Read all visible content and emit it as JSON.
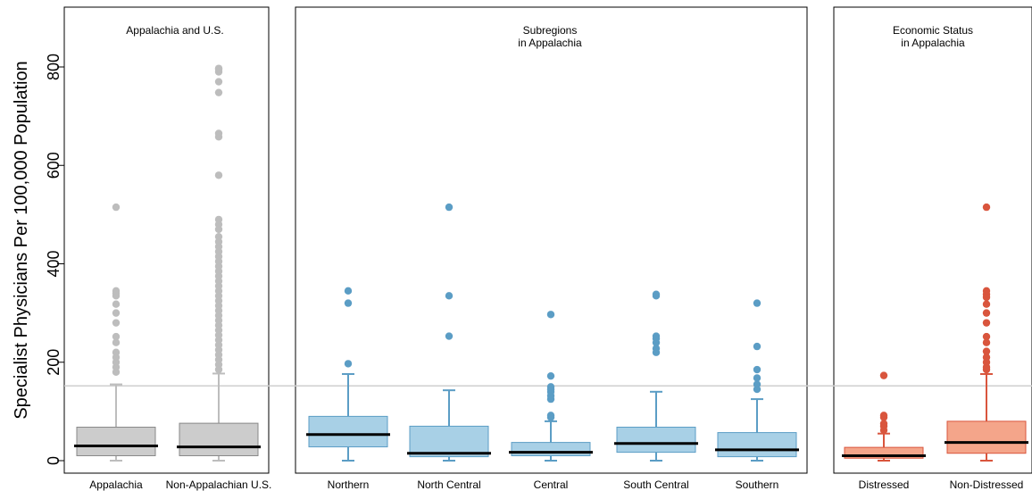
{
  "chart_data": {
    "type": "box",
    "ylabel": "Specialist Physicians Per 100,000 Population",
    "ylim": [
      -15,
      910
    ],
    "yticks": [
      0,
      200,
      400,
      600,
      800
    ],
    "reference_line": 152,
    "panels": [
      {
        "title": [
          "Appalachia and U.S."
        ],
        "color": "#bdbdbd",
        "fill": "#cccccc",
        "stroke": "#888888",
        "boxes": [
          {
            "label": "Appalachia",
            "q1": 10,
            "median": 30,
            "q3": 68,
            "whisker_low": 0,
            "whisker_high": 155,
            "outliers": [
              180,
              190,
              200,
              210,
              220,
              240,
              252,
              280,
              300,
              318,
              335,
              340,
              345,
              515
            ]
          },
          {
            "label": "Non-Appalachian U.S.",
            "q1": 10,
            "median": 28,
            "q3": 76,
            "whisker_low": 0,
            "whisker_high": 177,
            "outliers": [
              185,
              195,
              205,
              215,
              225,
              235,
              245,
              255,
              265,
              275,
              285,
              295,
              305,
              315,
              325,
              335,
              345,
              355,
              365,
              375,
              385,
              395,
              405,
              415,
              425,
              435,
              445,
              455,
              470,
              480,
              490,
              580,
              658,
              665,
              748,
              770,
              790,
              795,
              797
            ]
          }
        ]
      },
      {
        "title": [
          "Subregions",
          "in Appalachia"
        ],
        "color": "#5b9dc5",
        "fill": "#a8d0e6",
        "stroke": "#5b9dc5",
        "boxes": [
          {
            "label": "Northern",
            "q1": 28,
            "median": 53,
            "q3": 90,
            "whisker_low": 0,
            "whisker_high": 176,
            "outliers": [
              197,
              320,
              345
            ]
          },
          {
            "label": "North Central",
            "q1": 8,
            "median": 15,
            "q3": 70,
            "whisker_low": 0,
            "whisker_high": 143,
            "outliers": [
              253,
              335,
              515
            ]
          },
          {
            "label": "Central",
            "q1": 10,
            "median": 17,
            "q3": 37,
            "whisker_low": 0,
            "whisker_high": 80,
            "outliers": [
              88,
              92,
              125,
              132,
              140,
              145,
              150,
              172,
              297
            ]
          },
          {
            "label": "South Central",
            "q1": 17,
            "median": 35,
            "q3": 68,
            "whisker_low": 0,
            "whisker_high": 140,
            "outliers": [
              220,
              228,
              240,
              248,
              253,
              335,
              338
            ]
          },
          {
            "label": "Southern",
            "q1": 8,
            "median": 22,
            "q3": 57,
            "whisker_low": 0,
            "whisker_high": 125,
            "outliers": [
              145,
              155,
              168,
              185,
              232,
              320
            ]
          }
        ]
      },
      {
        "title": [
          "Economic Status",
          "in Appalachia"
        ],
        "color": "#d9553d",
        "fill": "#f4a58a",
        "stroke": "#d9553d",
        "boxes": [
          {
            "label": "Distressed",
            "q1": 5,
            "median": 10,
            "q3": 27,
            "whisker_low": 0,
            "whisker_high": 55,
            "outliers": [
              62,
              70,
              75,
              88,
              92,
              173
            ]
          },
          {
            "label": "Non-Distressed",
            "q1": 15,
            "median": 37,
            "q3": 80,
            "whisker_low": 0,
            "whisker_high": 176,
            "outliers": [
              185,
              190,
              200,
              210,
              222,
              240,
              252,
              280,
              300,
              318,
              332,
              338,
              345,
              515
            ]
          }
        ]
      }
    ]
  }
}
